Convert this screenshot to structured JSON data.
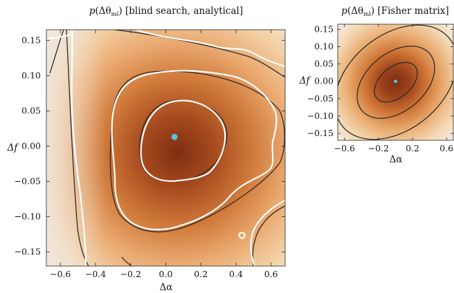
{
  "chart_data": [
    {
      "type": "heatmap",
      "title_parts": {
        "func": "p",
        "open": "(Δθ",
        "sub": "ml",
        "close": ")",
        "rest": " [blind search, analytical]"
      },
      "xlabel": "Δα",
      "ylabel": "Δf",
      "xlim": [
        -0.68,
        0.68
      ],
      "ylim": [
        -0.17,
        0.165
      ],
      "xticks": [
        -0.6,
        -0.4,
        -0.2,
        0.0,
        0.2,
        0.4,
        0.6
      ],
      "xtick_labels": [
        "−0.6",
        "−0.4",
        "−0.2",
        "0.0",
        "0.2",
        "0.4",
        "0.6"
      ],
      "yticks": [
        0.15,
        0.1,
        0.05,
        0.0,
        -0.05,
        -0.1,
        -0.15
      ],
      "ytick_labels": [
        "0.15",
        "0.10",
        "0.05",
        "0.00",
        "−0.05",
        "−0.10",
        "−0.15"
      ],
      "marker": {
        "x": 0.05,
        "y": 0.013,
        "color": "#5bc0de"
      },
      "colormap": [
        "#f7eee2",
        "#f0c896",
        "#d27a3a",
        "#7a2c10"
      ]
    },
    {
      "type": "heatmap",
      "title_parts": {
        "func": "p",
        "open": "(Δθ",
        "sub": "ml",
        "close": ")",
        "rest": " [Fisher matrix]"
      },
      "xlabel": "Δα",
      "ylabel": "Δf",
      "xlim": [
        -0.68,
        0.68
      ],
      "ylim": [
        -0.17,
        0.165
      ],
      "xticks": [
        -0.6,
        -0.2,
        0.2,
        0.6
      ],
      "xtick_labels": [
        "−0.6",
        "−0.2",
        "0.2",
        "0.6"
      ],
      "yticks": [
        0.15,
        0.1,
        0.05,
        0.0,
        -0.05,
        -0.1,
        -0.15
      ],
      "ytick_labels": [
        "0.15",
        "0.10",
        "0.05",
        "0.00",
        "−0.05",
        "−0.10",
        "−0.15"
      ],
      "marker": {
        "x": 0.0,
        "y": 0.0,
        "color": "#5bc0de"
      },
      "colormap": [
        "#f7eee2",
        "#f0c896",
        "#d27a3a",
        "#7a2c10"
      ]
    }
  ]
}
